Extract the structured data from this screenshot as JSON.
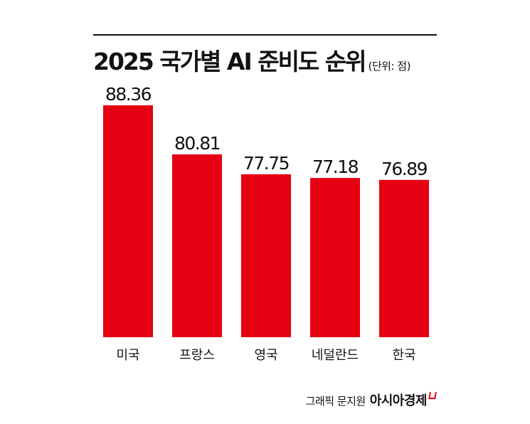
{
  "chart_data": {
    "type": "bar",
    "title": "2025 국가별 AI 준비도 순위",
    "unit_label": "(단위: 점)",
    "categories": [
      "미국",
      "프랑스",
      "영국",
      "네덜란드",
      "한국"
    ],
    "values": [
      88.36,
      80.81,
      77.75,
      77.18,
      76.89
    ],
    "value_labels": [
      "88.36",
      "80.81",
      "77.75",
      "77.18",
      "76.89"
    ],
    "xlabel": "",
    "ylabel": "",
    "ylim": [
      52.7,
      90
    ],
    "grid": false,
    "bar_color": "#e60012"
  },
  "credit": {
    "text": "그래픽 문지원",
    "brand": "아시아경제"
  }
}
